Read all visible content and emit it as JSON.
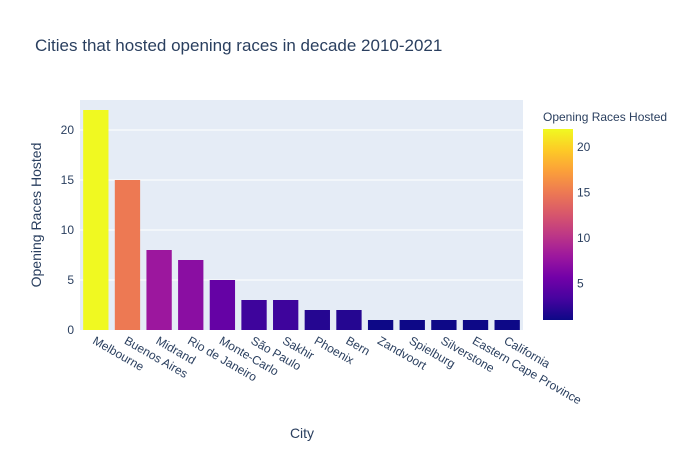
{
  "chart_data": {
    "type": "bar",
    "title": "Cities that hosted opening races in decade 2010-2021",
    "xlabel": "City",
    "ylabel": "Opening Races Hosted",
    "ylim": [
      0,
      23
    ],
    "yticks": [
      0,
      5,
      10,
      15,
      20
    ],
    "categories": [
      "Melbourne",
      "Buenos Aires",
      "Midrand",
      "Rio de Janeiro",
      "Monte-Carlo",
      "São Paulo",
      "Sakhir",
      "Phoenix",
      "Bern",
      "Zandvoort",
      "Spielburg",
      "Silverstone",
      "Eastern Cape Province",
      "California"
    ],
    "values": [
      22,
      15,
      8,
      7,
      5,
      3,
      3,
      2,
      2,
      1,
      1,
      1,
      1,
      1
    ],
    "colorbar": {
      "title": "Opening Races Hosted",
      "range": [
        1,
        22
      ],
      "ticks": [
        5,
        10,
        15,
        20
      ],
      "colorscale": [
        "#0d0887",
        "#46039f",
        "#7201a8",
        "#9c179e",
        "#bd3786",
        "#d8576b",
        "#ed7953",
        "#fb9f3a",
        "#fdca26",
        "#f0f921"
      ]
    },
    "plot_background": "#e5ecf6",
    "grid": true
  }
}
